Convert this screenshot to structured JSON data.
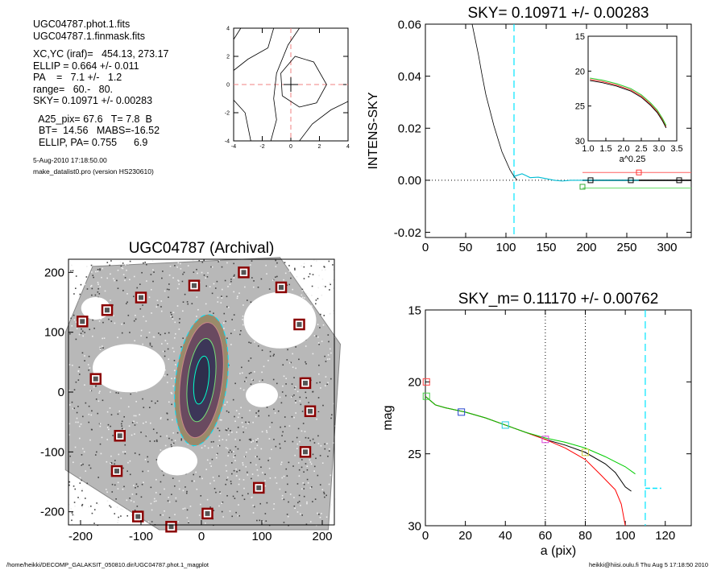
{
  "info": {
    "files": [
      "UGC04787.phot.1.fits",
      "UGC04787.1.finmask.fits"
    ],
    "params": [
      "XC,YC (iraf)=   454.13, 273.17",
      "ELLIP = 0.664 +/- 0.011",
      "PA    =   7.1 +/-   1.2",
      "range=   60.-   80.",
      "SKY= 0.10971 +/- 0.00283"
    ],
    "derived": [
      "  A25_pix= 67.6   T= 7.8  B",
      "  BT=  14.56   MABS=-16.52",
      "  ELLIP, PA= 0.755      6.9"
    ],
    "date": "5-Aug-2010 17:18:50.00",
    "program": "make_datalist0.pro (version HS230610)"
  },
  "footer": {
    "left": "/home/heikki/DECOMP_GALAKSIT_050810.dir/UGC04787.phot.1_magplot",
    "right": "heikki@hiisi.oulu.fi  Thu Aug  5 17:18:50 2010"
  },
  "chart_data": [
    {
      "id": "centering",
      "type": "line",
      "title": "",
      "xlim": [
        -4,
        4
      ],
      "ylim": [
        -4,
        4
      ],
      "xticks": [
        -4,
        -2,
        0,
        2,
        4
      ],
      "yticks": [
        -4,
        -2,
        0,
        2,
        4
      ],
      "center_marker": [
        0,
        0
      ],
      "contours": [
        [
          [
            -1.4,
            -4
          ],
          [
            -1.0,
            -2.5
          ],
          [
            -1.2,
            -1.0
          ],
          [
            -1.0,
            0.8
          ],
          [
            -0.2,
            2.8
          ],
          [
            0.6,
            4
          ]
        ],
        [
          [
            0.6,
            -4
          ],
          [
            1.5,
            -2.8
          ],
          [
            2.8,
            -1.8
          ],
          [
            4,
            -1.2
          ]
        ],
        [
          [
            -4,
            1.0
          ],
          [
            -3.0,
            1.8
          ],
          [
            -1.6,
            2.6
          ],
          [
            -1.2,
            4
          ]
        ],
        [
          [
            -4,
            -1.1
          ],
          [
            -3.2,
            -2.0
          ],
          [
            -2.8,
            -4
          ]
        ],
        [
          [
            -4,
            3.2
          ],
          [
            -3.5,
            4
          ]
        ],
        [
          [
            -0.6,
            -0.8
          ],
          [
            -0.7,
            0.8
          ],
          [
            0.3,
            2.0
          ],
          [
            1.6,
            1.6
          ],
          [
            2.5,
            0
          ],
          [
            1.8,
            -1.3
          ],
          [
            0.6,
            -1.6
          ],
          [
            -0.6,
            -0.8
          ]
        ]
      ]
    },
    {
      "id": "sky",
      "type": "line",
      "title": "SKY= 0.10971 +/- 0.00283",
      "xlabel": "",
      "ylabel": "INTENS-SKY",
      "xlim": [
        0,
        330
      ],
      "ylim": [
        -0.022,
        0.06
      ],
      "xticks": [
        0,
        50,
        100,
        150,
        200,
        250,
        300
      ],
      "yticks": [
        -0.02,
        0.0,
        0.02,
        0.04,
        0.06
      ],
      "ytick_labels": [
        "-0.02",
        "0.00",
        "0.02",
        "0.04",
        "0.06"
      ],
      "profile": [
        [
          58,
          0.06
        ],
        [
          62,
          0.054
        ],
        [
          66,
          0.048
        ],
        [
          70,
          0.041
        ],
        [
          75,
          0.033
        ],
        [
          80,
          0.027
        ],
        [
          85,
          0.021
        ],
        [
          90,
          0.016
        ],
        [
          95,
          0.011
        ],
        [
          100,
          0.0075
        ],
        [
          105,
          0.004
        ],
        [
          110,
          0.0015
        ],
        [
          114,
          0.0
        ]
      ],
      "residual": [
        [
          110,
          0.0015
        ],
        [
          115,
          0.002
        ],
        [
          120,
          0.0025
        ],
        [
          125,
          0.0018
        ],
        [
          130,
          0.001
        ],
        [
          140,
          0.0012
        ],
        [
          150,
          0.0006
        ],
        [
          160,
          0.0
        ],
        [
          170,
          -0.0003
        ],
        [
          180,
          0.0
        ],
        [
          200,
          0.0
        ],
        [
          250,
          0.0
        ],
        [
          265,
          0.0
        ]
      ],
      "sky_line": 0.0,
      "cyan_x": 110,
      "upper_level": 0.003,
      "lower_level": -0.003,
      "markers_red": [
        [
          265,
          0.003
        ]
      ],
      "markers_green": [
        [
          195,
          -0.0025
        ]
      ],
      "markers_black": [
        [
          205,
          0.0
        ],
        [
          255,
          0.0
        ],
        [
          315,
          0.0
        ]
      ],
      "inset": {
        "xlabel": "a^0.25",
        "xlim": [
          1.0,
          3.5
        ],
        "ylim": [
          30,
          15
        ],
        "xticks": [
          1.0,
          1.5,
          2.0,
          2.5,
          3.0,
          3.5
        ],
        "xtick_labels": [
          "1.0",
          "1.5",
          "2.0",
          "2.5",
          "3.0",
          "3.5"
        ],
        "yticks": [
          15,
          20,
          25,
          30
        ],
        "curve": [
          [
            1.05,
            21.2
          ],
          [
            1.4,
            21.5
          ],
          [
            1.8,
            22.0
          ],
          [
            2.2,
            22.7
          ],
          [
            2.5,
            23.6
          ],
          [
            2.75,
            24.7
          ],
          [
            2.95,
            25.8
          ],
          [
            3.1,
            27.0
          ],
          [
            3.2,
            28.0
          ]
        ]
      }
    },
    {
      "id": "image",
      "type": "scatter",
      "title": "UGC04787 (Archival)",
      "xlim": [
        -220,
        220
      ],
      "ylim": [
        -222,
        222
      ],
      "xticks": [
        -200,
        -100,
        0,
        100,
        200
      ],
      "yticks": [
        -200,
        -100,
        0,
        100,
        200
      ],
      "footprint": [
        [
          -180,
          210
        ],
        [
          130,
          225
        ],
        [
          230,
          80
        ],
        [
          210,
          -230
        ],
        [
          -70,
          -230
        ],
        [
          -225,
          -130
        ],
        [
          -225,
          100
        ]
      ],
      "masks": [
        [
          -12,
          178
        ],
        [
          70,
          200
        ],
        [
          132,
          175
        ],
        [
          -156,
          137
        ],
        [
          -100,
          158
        ],
        [
          -197,
          118
        ],
        [
          162,
          113
        ],
        [
          -175,
          22
        ],
        [
          172,
          15
        ],
        [
          180,
          -32
        ],
        [
          -135,
          -73
        ],
        [
          172,
          -100
        ],
        [
          -140,
          -132
        ],
        [
          95,
          -160
        ],
        [
          10,
          -203
        ],
        [
          -105,
          -208
        ],
        [
          -50,
          -225
        ]
      ],
      "galaxy": {
        "xc": 0,
        "yc": 20,
        "a": 40,
        "b": 110,
        "angle_deg": 7.1
      }
    },
    {
      "id": "mag",
      "type": "line",
      "title": "SKY_m=  0.11170 +/- 0.00762",
      "xlabel": "a (pix)",
      "ylabel": "mag",
      "xlim": [
        0,
        133
      ],
      "ylim": [
        30,
        15
      ],
      "xticks": [
        0,
        20,
        40,
        60,
        80,
        100,
        120
      ],
      "yticks": [
        15,
        20,
        25,
        30
      ],
      "vlines": [
        60,
        80
      ],
      "cyan_x": 110,
      "sky_mark": {
        "x1": 110,
        "x2": 118,
        "y": 27.4
      },
      "series": [
        {
          "color": "#000000",
          "values": [
            [
              0,
              21.0
            ],
            [
              5,
              21.6
            ],
            [
              10,
              21.8
            ],
            [
              20,
              22.1
            ],
            [
              30,
              22.5
            ],
            [
              40,
              23.0
            ],
            [
              50,
              23.5
            ],
            [
              60,
              24.0
            ],
            [
              70,
              24.4
            ],
            [
              80,
              24.9
            ],
            [
              90,
              25.7
            ],
            [
              95,
              26.3
            ],
            [
              100,
              27.3
            ],
            [
              103,
              27.6
            ]
          ]
        },
        {
          "color": "#ff0000",
          "values": [
            [
              0,
              21.0
            ],
            [
              5,
              21.6
            ],
            [
              10,
              21.8
            ],
            [
              20,
              22.1
            ],
            [
              30,
              22.5
            ],
            [
              40,
              23.0
            ],
            [
              50,
              23.5
            ],
            [
              60,
              24.0
            ],
            [
              70,
              24.6
            ],
            [
              80,
              25.4
            ],
            [
              88,
              26.5
            ],
            [
              95,
              27.5
            ],
            [
              98,
              28.5
            ],
            [
              100,
              30.0
            ]
          ]
        },
        {
          "color": "#00cc00",
          "values": [
            [
              0,
              21.0
            ],
            [
              5,
              21.6
            ],
            [
              10,
              21.8
            ],
            [
              20,
              22.1
            ],
            [
              30,
              22.5
            ],
            [
              40,
              23.0
            ],
            [
              50,
              23.5
            ],
            [
              60,
              23.9
            ],
            [
              70,
              24.2
            ],
            [
              80,
              24.6
            ],
            [
              90,
              25.2
            ],
            [
              100,
              25.9
            ],
            [
              105,
              26.4
            ]
          ]
        }
      ],
      "markers": [
        {
          "x": 0.5,
          "y": 20.0,
          "color": "#ff4444"
        },
        {
          "x": 0.5,
          "y": 21.0,
          "color": "#44cc44"
        },
        {
          "x": 18,
          "y": 22.1,
          "color": "#2244cc"
        },
        {
          "x": 40,
          "y": 23.0,
          "color": "#22ccdd"
        },
        {
          "x": 60,
          "y": 24.0,
          "color": "#dd44dd"
        },
        {
          "x": 80,
          "y": 24.9,
          "color": "#cccc44"
        }
      ]
    }
  ]
}
